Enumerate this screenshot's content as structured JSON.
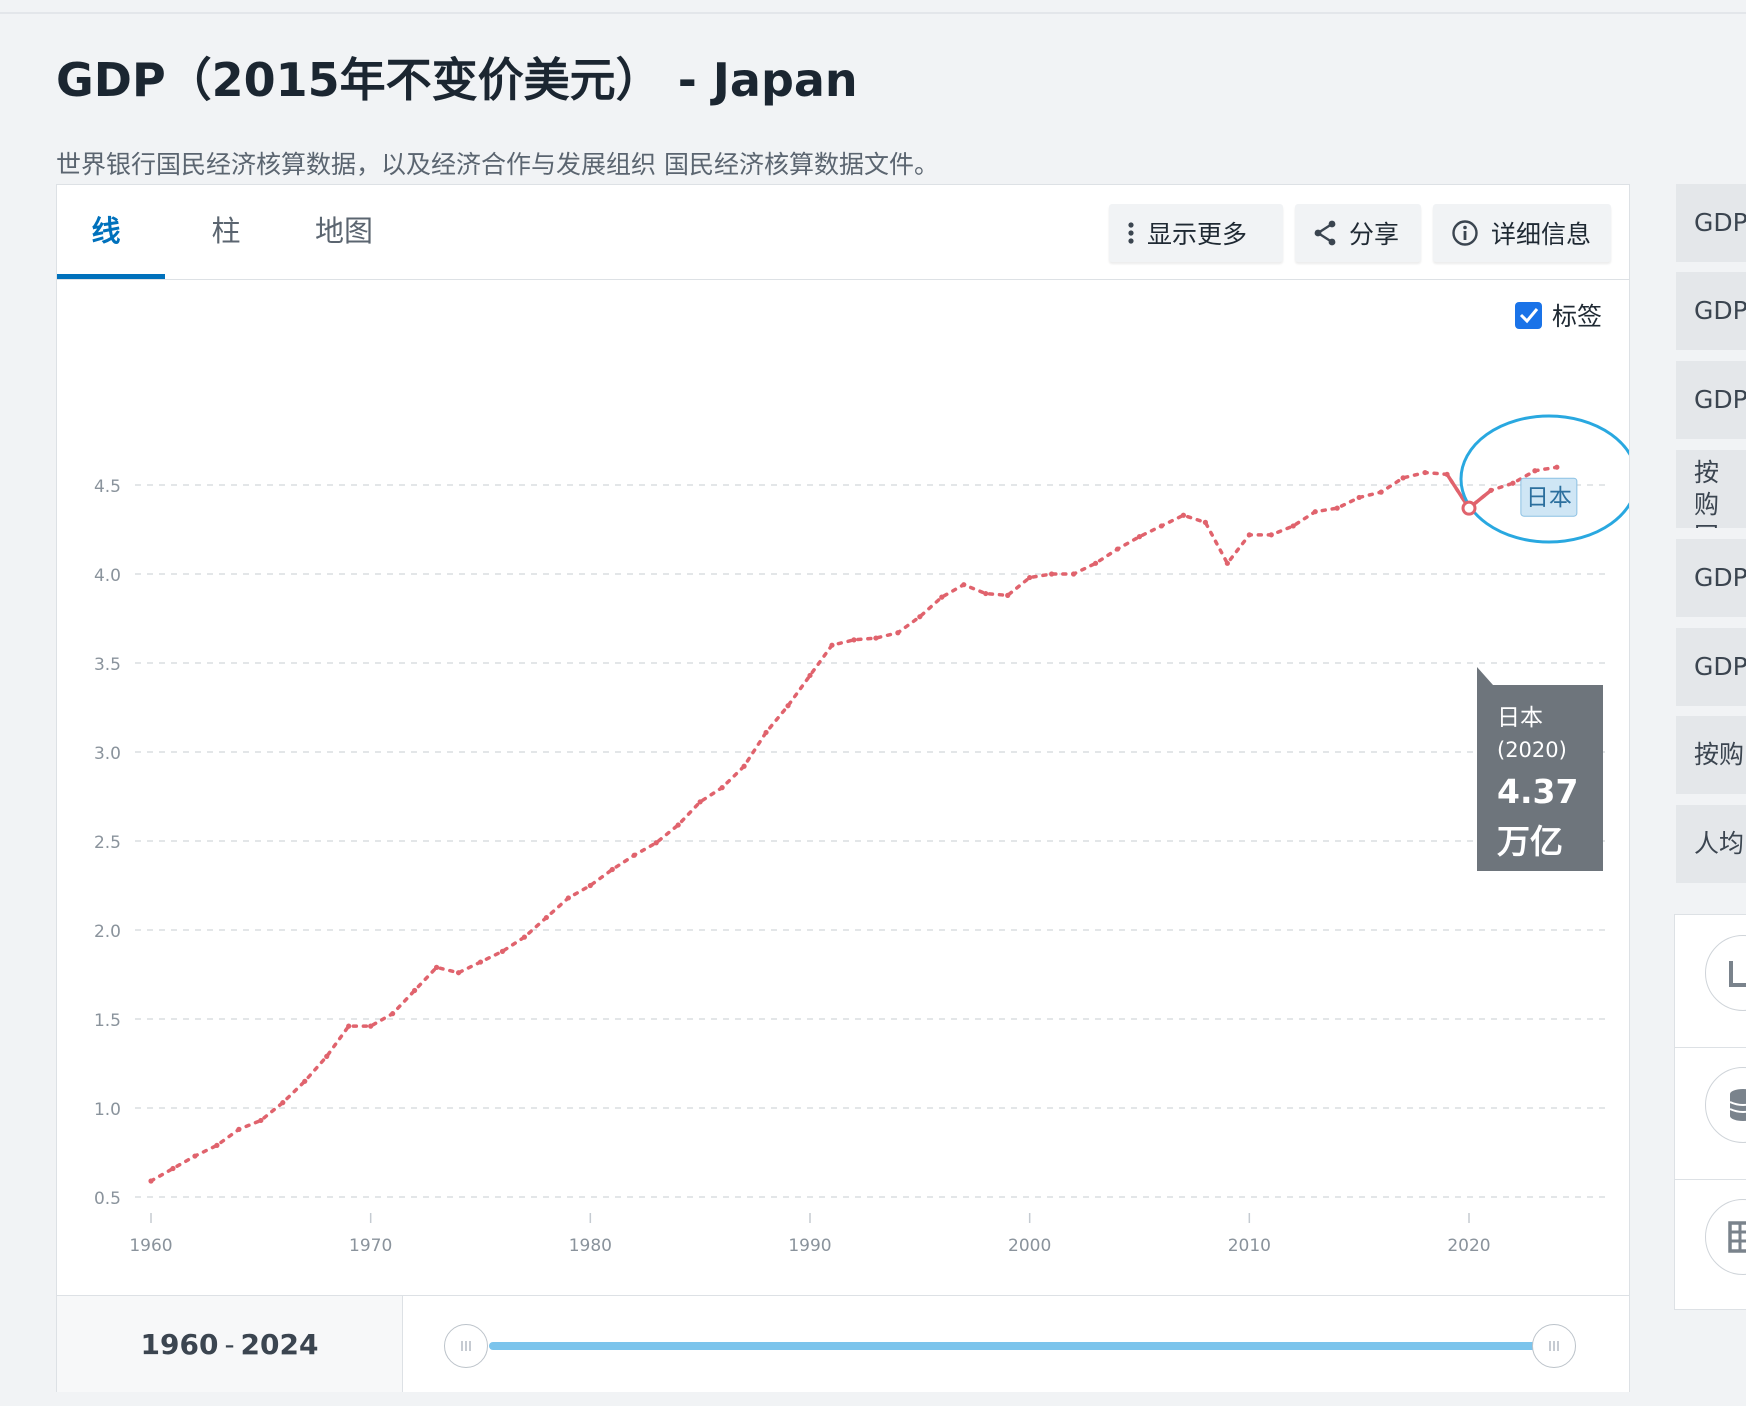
{
  "page": {
    "title": "GDP（2015年不变价美元） - Japan",
    "source": "世界银行国民经济核算数据，以及经济合作与发展组织 国民经济核算数据文件。"
  },
  "tabs": [
    {
      "label": "线",
      "active": true
    },
    {
      "label": "柱",
      "active": false
    },
    {
      "label": "地图",
      "active": false
    }
  ],
  "toolbar": {
    "more_label": "显示更多",
    "share_label": "分享",
    "details_label": "详细信息"
  },
  "labels_toggle": {
    "label": "标签",
    "checked": true
  },
  "series_label": "日本",
  "tooltip": {
    "country": "日本",
    "year": "(2020)",
    "value": "4.37",
    "unit": "万亿"
  },
  "range": {
    "start": "1960",
    "sep": "-",
    "end": "2024"
  },
  "sidebar": {
    "items": [
      "GDP",
      "GDP",
      "GDP",
      "按购 国际",
      "GDP",
      "GDP",
      "按购",
      "人均"
    ]
  },
  "colors": {
    "line": "#e0636d",
    "accent": "#0071bc",
    "highlight_ring": "#29a8e0",
    "tooltip_bg": "#6e757c",
    "slider": "#7bc4ec"
  },
  "chart_data": {
    "type": "line",
    "x_ticks": [
      1960,
      1970,
      1980,
      1990,
      2000,
      2010,
      2020
    ],
    "y_ticks": [
      0.5,
      1.0,
      1.5,
      2.0,
      2.5,
      3.0,
      3.5,
      4.0,
      4.5
    ],
    "xlim": [
      1960,
      2024
    ],
    "ylim": [
      0.5,
      4.6
    ],
    "grid": true,
    "series": [
      {
        "name": "日本",
        "x": [
          1960,
          1961,
          1962,
          1963,
          1964,
          1965,
          1966,
          1967,
          1968,
          1969,
          1970,
          1971,
          1972,
          1973,
          1974,
          1975,
          1976,
          1977,
          1978,
          1979,
          1980,
          1981,
          1982,
          1983,
          1984,
          1985,
          1986,
          1987,
          1988,
          1989,
          1990,
          1991,
          1992,
          1993,
          1994,
          1995,
          1996,
          1997,
          1998,
          1999,
          2000,
          2001,
          2002,
          2003,
          2004,
          2005,
          2006,
          2007,
          2008,
          2009,
          2010,
          2011,
          2012,
          2013,
          2014,
          2015,
          2016,
          2017,
          2018,
          2019,
          2020,
          2021,
          2022,
          2023,
          2024
        ],
        "values": [
          0.59,
          0.66,
          0.73,
          0.79,
          0.88,
          0.93,
          1.03,
          1.15,
          1.29,
          1.46,
          1.46,
          1.53,
          1.66,
          1.79,
          1.76,
          1.82,
          1.88,
          1.96,
          2.07,
          2.18,
          2.25,
          2.34,
          2.42,
          2.49,
          2.59,
          2.72,
          2.8,
          2.92,
          3.11,
          3.26,
          3.43,
          3.6,
          3.63,
          3.64,
          3.67,
          3.76,
          3.87,
          3.94,
          3.89,
          3.88,
          3.98,
          4.0,
          4.0,
          4.06,
          4.14,
          4.21,
          4.27,
          4.33,
          4.29,
          4.06,
          4.22,
          4.22,
          4.27,
          4.35,
          4.37,
          4.43,
          4.46,
          4.54,
          4.57,
          4.56,
          4.37,
          4.47,
          4.51,
          4.58,
          4.6
        ]
      }
    ],
    "highlight": {
      "x": 2020,
      "y": 4.37
    }
  }
}
